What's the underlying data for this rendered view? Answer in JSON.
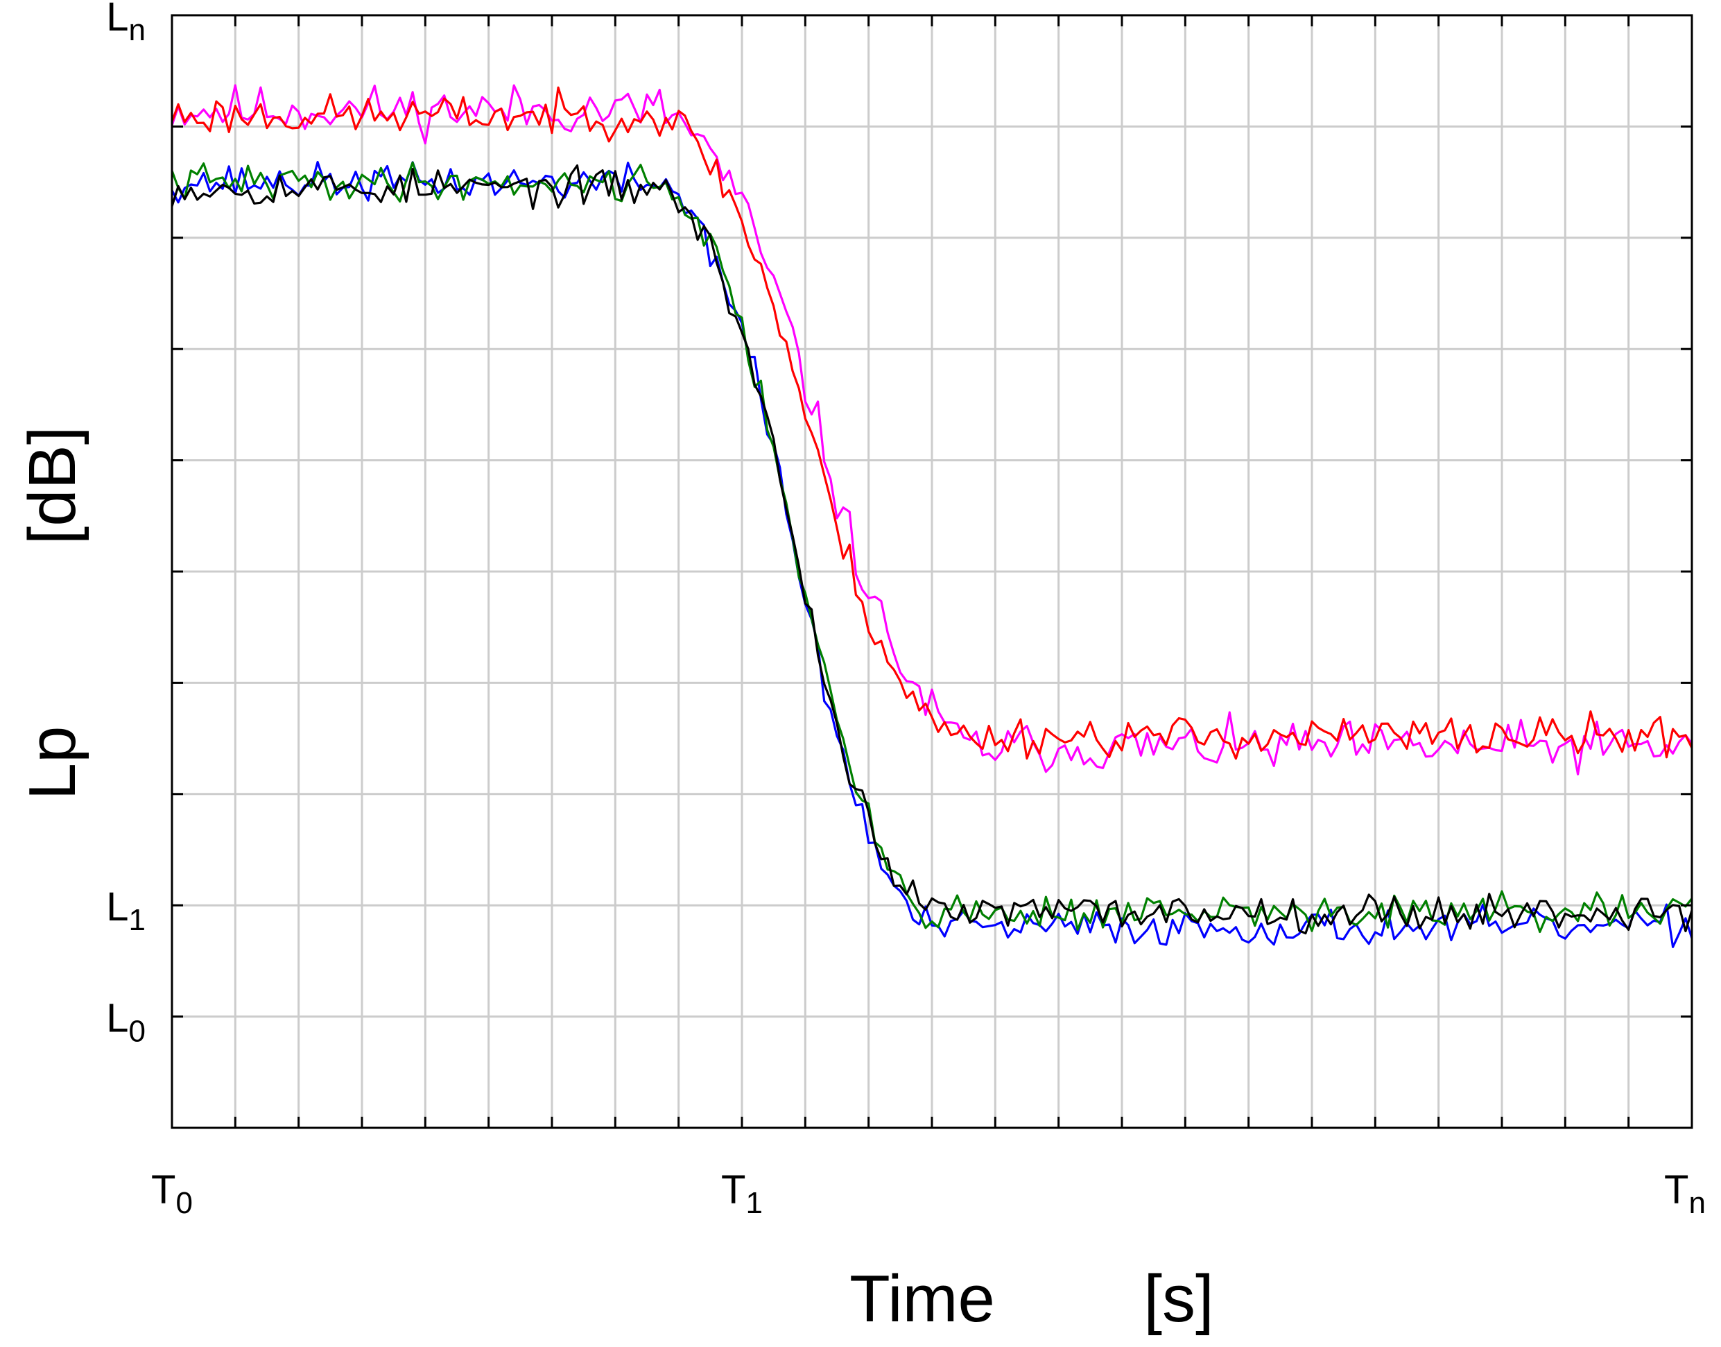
{
  "chart_data": {
    "type": "line",
    "xlabel": "Time",
    "xunit": "[s]",
    "ylabel": "Lp",
    "yunit": "[dB]",
    "xlim": [
      0,
      240
    ],
    "ylim": [
      -1,
      9
    ],
    "grid": true,
    "x_ticks": [
      {
        "value": 0,
        "label": "T",
        "sub": "0"
      },
      {
        "value": 90,
        "label": "T",
        "sub": "1"
      },
      {
        "value": 240,
        "label": "T",
        "sub": "n"
      }
    ],
    "y_ticks": [
      {
        "value": 0,
        "label": "L",
        "sub": "0"
      },
      {
        "value": 1,
        "label": "L",
        "sub": "1"
      },
      {
        "value": 9,
        "label": "L",
        "sub": "n"
      }
    ],
    "series": [
      {
        "color": "#ff00ff",
        "high": 8.15,
        "low": 2.42,
        "drop_start": 77,
        "drop_end": 127,
        "noise": 0.11,
        "seed": 11
      },
      {
        "color": "#ff0000",
        "high": 8.1,
        "low": 2.52,
        "drop_start": 77,
        "drop_end": 124,
        "noise": 0.09,
        "seed": 23
      },
      {
        "color": "#0000ff",
        "high": 7.5,
        "low": 0.8,
        "drop_start": 77,
        "drop_end": 120,
        "noise": 0.08,
        "seed": 37
      },
      {
        "color": "#008000",
        "high": 7.5,
        "low": 0.93,
        "drop_start": 77,
        "drop_end": 120,
        "noise": 0.08,
        "seed": 41
      },
      {
        "color": "#000000",
        "high": 7.45,
        "low": 0.94,
        "drop_start": 77,
        "drop_end": 120,
        "noise": 0.08,
        "seed": 53
      }
    ]
  }
}
